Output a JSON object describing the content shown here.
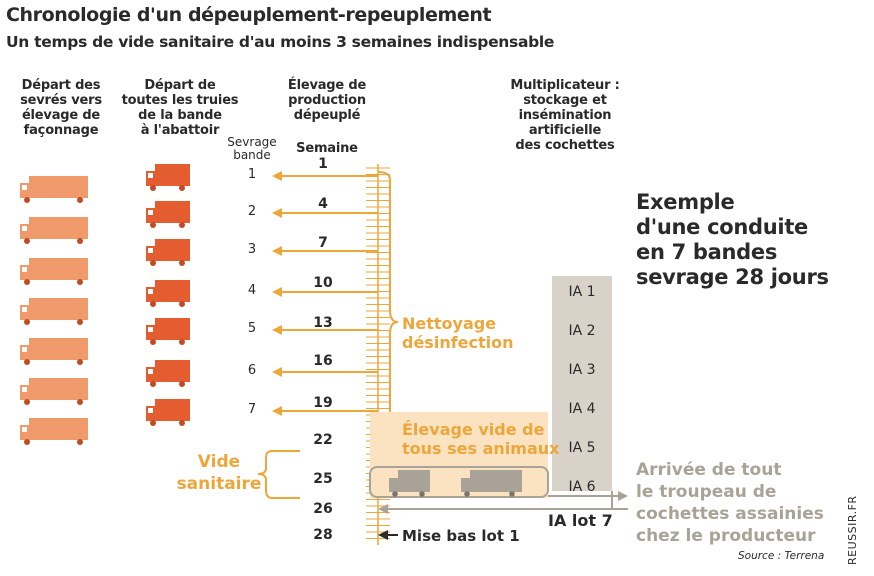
{
  "title": "Chronologie d'un dépeuplement-repeuplement",
  "subtitle": "Un temps de vide sanitaire d'au moins 3 semaines indispensable",
  "columns": {
    "col1": [
      "Départ des",
      "sevrés vers",
      "élevage de",
      "façonnage"
    ],
    "col2": [
      "Départ de",
      "toutes les truies",
      "de la bande",
      "à l'abattoir"
    ],
    "col3": [
      "Élevage de",
      "production",
      "dépeuplé"
    ],
    "col4": [
      "Multiplicateur :",
      "stockage et",
      "insémination",
      "artificielle",
      "des cochettes"
    ]
  },
  "sevrage_label": [
    "Sevrage",
    "bande"
  ],
  "semaine_label": "Semaine",
  "bandes": [
    "1",
    "2",
    "3",
    "4",
    "5",
    "6",
    "7"
  ],
  "weeks": [
    "1",
    "4",
    "7",
    "10",
    "13",
    "16",
    "19",
    "22",
    "25",
    "26",
    "28"
  ],
  "nettoyage": [
    "Nettoyage",
    "désinfection"
  ],
  "elevage_vide": [
    "Élevage vide de",
    "tous ses animaux"
  ],
  "vide_sanitaire": [
    "Vide",
    "sanitaire"
  ],
  "ia_labels": [
    "IA 1",
    "IA 2",
    "IA 3",
    "IA 4",
    "IA 5",
    "IA 6"
  ],
  "ia_lot": "IA lot 7",
  "mise_bas": "Mise bas lot 1",
  "example": [
    "Exemple",
    "d'une conduite",
    "en 7 bandes",
    "sevrage 28 jours"
  ],
  "arrival": [
    "Arrivée de tout",
    "le troupeau de",
    "cochettes assainies",
    "chez le producteur"
  ],
  "source": "Source : Terrena",
  "credit": "REUSSIR.FR",
  "colors": {
    "orange": "#eda63a",
    "truck_light": "#f0996a",
    "truck_dark": "#e35d30",
    "gray": "#a8a396",
    "ia_bg": "#d9d2c9"
  }
}
